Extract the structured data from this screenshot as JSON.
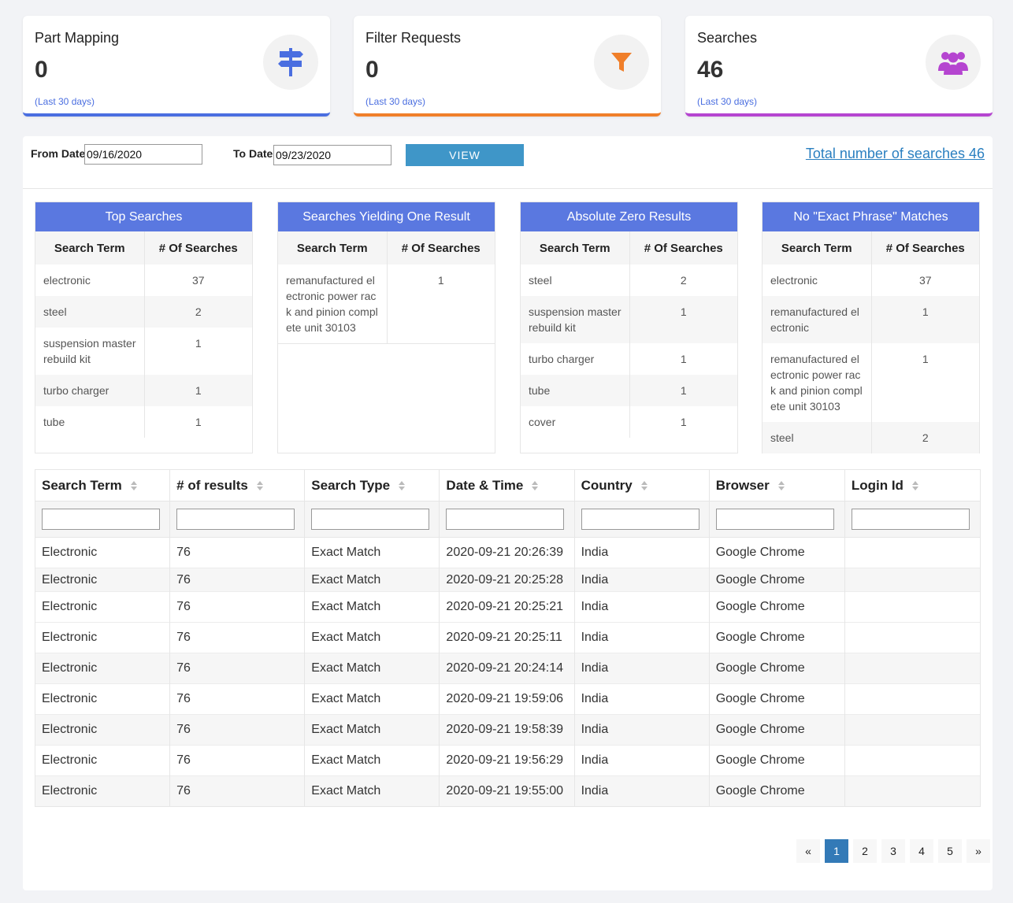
{
  "cards": [
    {
      "title": "Part Mapping",
      "value": "0",
      "period": "(Last 30 days)",
      "icon": "signpost-icon",
      "color": "#4a6ee0"
    },
    {
      "title": "Filter Requests",
      "value": "0",
      "period": "(Last 30 days)",
      "icon": "filter-icon",
      "color": "#f07f2a"
    },
    {
      "title": "Searches",
      "value": "46",
      "period": "(Last 30 days)",
      "icon": "users-icon",
      "color": "#b545d0"
    }
  ],
  "filter": {
    "from_label": "From Date",
    "from_value": "09/16/2020",
    "to_label": "To Date",
    "to_value": "09/23/2020",
    "view_label": "VIEW",
    "total_link": "Total number of searches 46"
  },
  "mini_tables": [
    {
      "title": "Top Searches",
      "col1": "Search Term",
      "col2": "# Of Searches",
      "rows": [
        [
          "electronic",
          "37"
        ],
        [
          "steel",
          "2"
        ],
        [
          "suspension master rebuild kit",
          "1"
        ],
        [
          "turbo charger",
          "1"
        ],
        [
          "tube",
          "1"
        ]
      ]
    },
    {
      "title": "Searches Yielding One Result",
      "col1": "Search Term",
      "col2": "# Of Searches",
      "rows": [
        [
          "remanufactured electronic power rack and pinion complete unit 30103",
          "1"
        ]
      ]
    },
    {
      "title": "Absolute Zero Results",
      "col1": "Search Term",
      "col2": "# Of Searches",
      "rows": [
        [
          "steel",
          "2"
        ],
        [
          "suspension master rebuild kit",
          "1"
        ],
        [
          "turbo charger",
          "1"
        ],
        [
          "tube",
          "1"
        ],
        [
          "cover",
          "1"
        ]
      ]
    },
    {
      "title": "No \"Exact Phrase\" Matches",
      "col1": "Search Term",
      "col2": "# Of Searches",
      "rows": [
        [
          "electronic",
          "37"
        ],
        [
          "remanufactured electronic",
          "1"
        ],
        [
          "remanufactured electronic power rack and pinion complete unit 30103",
          "1"
        ],
        [
          "steel",
          "2"
        ]
      ]
    }
  ],
  "results": {
    "headers": [
      "Search Term",
      "# of results",
      "Search Type",
      "Date & Time",
      "Country",
      "Browser",
      "Login Id"
    ],
    "rows": [
      [
        "Electronic",
        "76",
        "Exact Match",
        "2020-09-21 20:26:39",
        "India",
        "Google Chrome",
        ""
      ],
      [
        "Electronic",
        "76",
        "Exact Match",
        "2020-09-21 20:25:28",
        "India",
        "Google Chrome",
        ""
      ],
      [
        "Electronic",
        "76",
        "Exact Match",
        "2020-09-21 20:25:21",
        "India",
        "Google Chrome",
        ""
      ],
      [
        "Electronic",
        "76",
        "Exact Match",
        "2020-09-21 20:25:11",
        "India",
        "Google Chrome",
        ""
      ],
      [
        "Electronic",
        "76",
        "Exact Match",
        "2020-09-21 20:24:14",
        "India",
        "Google Chrome",
        ""
      ],
      [
        "Electronic",
        "76",
        "Exact Match",
        "2020-09-21 19:59:06",
        "India",
        "Google Chrome",
        ""
      ],
      [
        "Electronic",
        "76",
        "Exact Match",
        "2020-09-21 19:58:39",
        "India",
        "Google Chrome",
        ""
      ],
      [
        "Electronic",
        "76",
        "Exact Match",
        "2020-09-21 19:56:29",
        "India",
        "Google Chrome",
        ""
      ],
      [
        "Electronic",
        "76",
        "Exact Match",
        "2020-09-21 19:55:00",
        "India",
        "Google Chrome",
        ""
      ]
    ]
  },
  "pagination": {
    "prev": "«",
    "pages": [
      "1",
      "2",
      "3",
      "4",
      "5"
    ],
    "active": "1",
    "next": "»"
  }
}
